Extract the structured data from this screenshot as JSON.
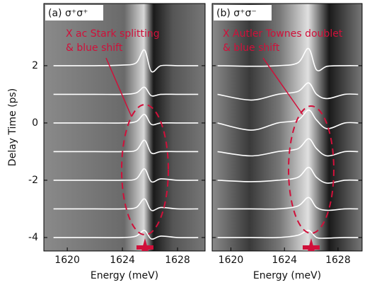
{
  "chart_data": [
    {
      "type": "line",
      "title": "(a) σ⁺σ⁺",
      "annotation": [
        "X ac Stark splitting",
        "& blue shift"
      ],
      "xlabel": "Energy (meV)",
      "ylabel": "Delay Time (ps)",
      "xlim": [
        1618.3,
        1630
      ],
      "ylim": [
        -4.47,
        4.17
      ],
      "xticks": [
        1620,
        1624,
        1628
      ],
      "yticks": [
        2,
        0,
        -2,
        -4
      ],
      "x": [
        1619,
        1622,
        1624,
        1625,
        1625.6,
        1626.1,
        1626.8,
        1628,
        1629.5
      ],
      "series": [
        {
          "color": "#ffffff",
          "values": [
            2.0,
            2.0,
            2.02,
            2.1,
            2.55,
            1.8,
            2.0,
            2.0,
            2.0
          ]
        },
        {
          "color": "#ffffff",
          "values": [
            1.0,
            1.0,
            1.0,
            1.05,
            1.25,
            0.95,
            1.0,
            1.0,
            1.0
          ]
        },
        {
          "color": "#ffffff",
          "values": [
            0,
            0,
            0,
            0.05,
            0.3,
            -0.05,
            0,
            0,
            0
          ]
        },
        {
          "color": "#ffffff",
          "values": [
            -1,
            -1,
            -1,
            -0.95,
            -0.6,
            -1.05,
            -1,
            -1,
            -1
          ]
        },
        {
          "color": "#ffffff",
          "values": [
            -2,
            -2,
            -2,
            -1.95,
            -1.6,
            -2.05,
            -1.95,
            -2,
            -2
          ]
        },
        {
          "color": "#ffffff",
          "values": [
            -3,
            -3,
            -3,
            -2.95,
            -2.65,
            -3.05,
            -2.95,
            -3,
            -3
          ]
        },
        {
          "color": "#ffffff",
          "values": [
            -4,
            -4,
            -4,
            -3.95,
            -3.75,
            -4.05,
            -3.95,
            -4,
            -4
          ]
        }
      ]
    },
    {
      "type": "line",
      "title": "(b) σ⁺σ⁻",
      "annotation": [
        "X Autler Townes doublet",
        "& blue shift"
      ],
      "xlabel": "Energy (meV)",
      "xlim": [
        1618.6,
        1629.8
      ],
      "ylim": [
        -4.47,
        4.17
      ],
      "xticks": [
        1620,
        1624,
        1628
      ],
      "yticks": [
        2,
        0,
        -2,
        -4
      ],
      "x": [
        1619,
        1621.5,
        1623.5,
        1625,
        1625.8,
        1626.4,
        1627.2,
        1628.5,
        1629.5
      ],
      "series": [
        {
          "color": "#ffffff",
          "values": [
            2,
            1.98,
            2,
            2.1,
            2.6,
            1.85,
            1.98,
            2,
            2
          ]
        },
        {
          "color": "#ffffff",
          "values": [
            1,
            0.8,
            1,
            1.1,
            1.4,
            1.0,
            0.85,
            1,
            1
          ]
        },
        {
          "color": "#ffffff",
          "values": [
            0,
            -0.25,
            0,
            0.1,
            0.45,
            0.1,
            -0.2,
            0,
            0
          ]
        },
        {
          "color": "#ffffff",
          "values": [
            -1,
            -1.15,
            -1,
            -0.9,
            -0.55,
            -0.9,
            -1.15,
            -1,
            -1
          ]
        },
        {
          "color": "#ffffff",
          "values": [
            -2,
            -2.05,
            -2,
            -1.9,
            -1.55,
            -1.9,
            -2.1,
            -2,
            -2
          ]
        },
        {
          "color": "#ffffff",
          "values": [
            -3,
            -3,
            -3,
            -2.9,
            -2.6,
            -2.95,
            -3.05,
            -3,
            -3
          ]
        },
        {
          "color": "#ffffff",
          "values": [
            -4,
            -4,
            -4,
            -3.92,
            -3.75,
            -4.0,
            -4.02,
            -4,
            -4
          ]
        }
      ]
    }
  ]
}
